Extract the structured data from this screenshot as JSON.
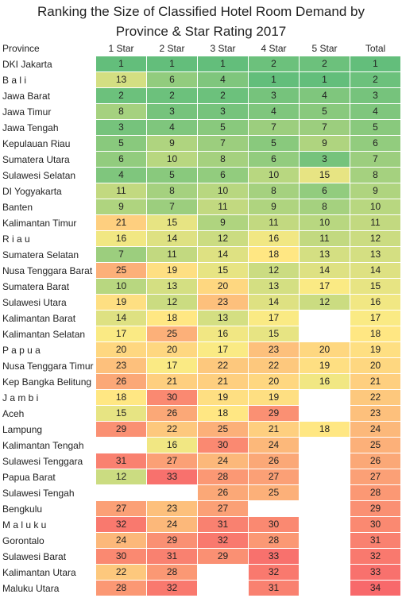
{
  "chart_data": {
    "type": "table",
    "title_lines": [
      "Ranking the Size of Classified Hotel Room Demand by",
      "Province & Star Rating 2017"
    ],
    "columns": [
      "Province",
      "1 Star",
      "2 Star",
      "3 Star",
      "4 Star",
      "5 Star",
      "Total"
    ],
    "rank_range": [
      1,
      34
    ],
    "colors": {
      "best": "#63be7b",
      "mid": "#ffeb84",
      "worst": "#f8696b"
    },
    "rows": [
      {
        "province": "DKI Jakarta",
        "values": [
          1,
          1,
          1,
          2,
          2,
          1
        ]
      },
      {
        "province": "B a l i",
        "values": [
          13,
          6,
          4,
          1,
          1,
          2
        ]
      },
      {
        "province": "Jawa Barat",
        "values": [
          2,
          2,
          2,
          3,
          4,
          3
        ]
      },
      {
        "province": "Jawa Timur",
        "values": [
          8,
          3,
          3,
          4,
          5,
          4
        ]
      },
      {
        "province": "Jawa Tengah",
        "values": [
          3,
          4,
          5,
          7,
          7,
          5
        ]
      },
      {
        "province": "Kepulauan Riau",
        "values": [
          5,
          9,
          7,
          5,
          9,
          6
        ]
      },
      {
        "province": "Sumatera Utara",
        "values": [
          6,
          10,
          8,
          6,
          3,
          7
        ]
      },
      {
        "province": "Sulawesi Selatan",
        "values": [
          4,
          5,
          6,
          10,
          15,
          8
        ]
      },
      {
        "province": "DI Yogyakarta",
        "values": [
          11,
          8,
          10,
          8,
          6,
          9
        ]
      },
      {
        "province": "Banten",
        "values": [
          9,
          7,
          11,
          9,
          8,
          10
        ]
      },
      {
        "province": "Kalimantan Timur",
        "values": [
          21,
          15,
          9,
          11,
          10,
          11
        ]
      },
      {
        "province": "R i a u",
        "values": [
          16,
          14,
          12,
          16,
          11,
          12
        ]
      },
      {
        "province": "Sumatera Selatan",
        "values": [
          7,
          11,
          14,
          18,
          13,
          13
        ]
      },
      {
        "province": "Nusa Tenggara Barat",
        "values": [
          25,
          19,
          15,
          12,
          14,
          14
        ]
      },
      {
        "province": "Sumatera Barat",
        "values": [
          10,
          13,
          20,
          13,
          17,
          15
        ]
      },
      {
        "province": "Sulawesi Utara",
        "values": [
          19,
          12,
          23,
          14,
          12,
          16
        ]
      },
      {
        "province": "Kalimantan Barat",
        "values": [
          14,
          18,
          13,
          17,
          null,
          17
        ]
      },
      {
        "province": "Kalimantan Selatan",
        "values": [
          17,
          25,
          16,
          15,
          null,
          18
        ]
      },
      {
        "province": "P a p u a",
        "values": [
          20,
          20,
          17,
          23,
          20,
          19
        ]
      },
      {
        "province": "Nusa Tenggara Timur",
        "values": [
          23,
          17,
          22,
          22,
          19,
          20
        ]
      },
      {
        "province": "Kep Bangka Belitung",
        "values": [
          26,
          21,
          21,
          20,
          16,
          21
        ]
      },
      {
        "province": "J a m b i",
        "values": [
          18,
          30,
          19,
          19,
          null,
          22
        ]
      },
      {
        "province": "Aceh",
        "values": [
          15,
          26,
          18,
          29,
          null,
          23
        ]
      },
      {
        "province": "Lampung",
        "values": [
          29,
          22,
          25,
          21,
          18,
          24
        ]
      },
      {
        "province": "Kalimantan Tengah",
        "values": [
          null,
          16,
          30,
          24,
          null,
          25
        ]
      },
      {
        "province": "Sulawesi Tenggara",
        "values": [
          31,
          27,
          24,
          26,
          null,
          26
        ]
      },
      {
        "province": "Papua Barat",
        "values": [
          12,
          33,
          28,
          27,
          null,
          27
        ]
      },
      {
        "province": "Sulawesi Tengah",
        "values": [
          null,
          null,
          26,
          25,
          null,
          28
        ]
      },
      {
        "province": "Bengkulu",
        "values": [
          27,
          23,
          27,
          null,
          null,
          29
        ]
      },
      {
        "province": "M a l u k u",
        "values": [
          32,
          24,
          31,
          30,
          null,
          30
        ]
      },
      {
        "province": "Gorontalo",
        "values": [
          24,
          29,
          32,
          28,
          null,
          31
        ]
      },
      {
        "province": "Sulawesi Barat",
        "values": [
          30,
          31,
          29,
          33,
          null,
          32
        ]
      },
      {
        "province": "Kalimantan Utara",
        "values": [
          22,
          28,
          null,
          32,
          null,
          33
        ]
      },
      {
        "province": "Maluku Utara",
        "values": [
          28,
          32,
          null,
          31,
          null,
          34
        ]
      }
    ]
  }
}
